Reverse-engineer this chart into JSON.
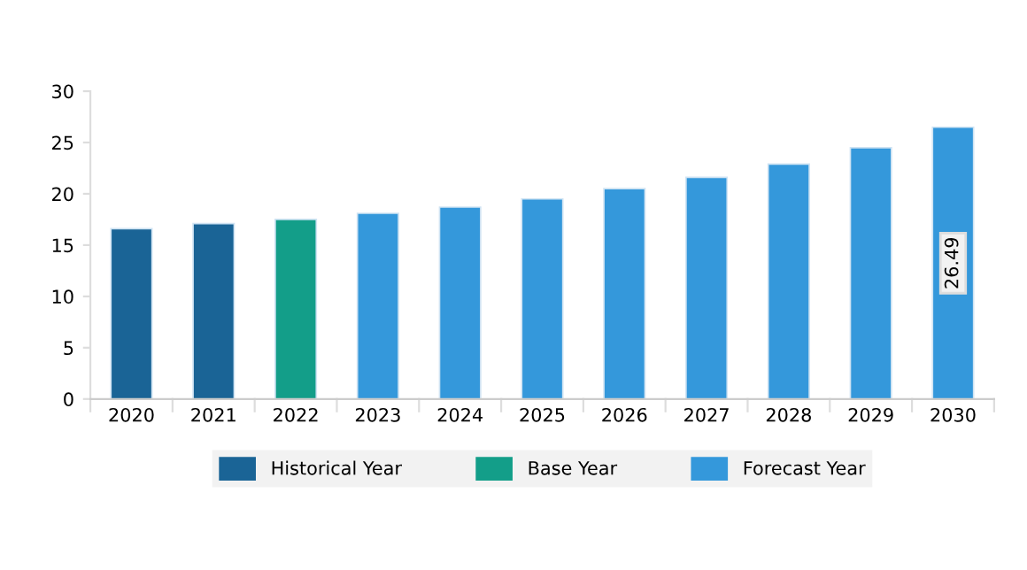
{
  "chart_data": {
    "type": "bar",
    "categories": [
      "2020",
      "2021",
      "2022",
      "2023",
      "2024",
      "2025",
      "2026",
      "2027",
      "2028",
      "2029",
      "2030"
    ],
    "series": [
      {
        "name": "Historical Year",
        "color": "#1a6496",
        "values": [
          16.6,
          17.1,
          null,
          null,
          null,
          null,
          null,
          null,
          null,
          null,
          null
        ]
      },
      {
        "name": "Base Year",
        "color": "#139e89",
        "values": [
          null,
          null,
          17.5,
          null,
          null,
          null,
          null,
          null,
          null,
          null,
          null
        ]
      },
      {
        "name": "Forecast Year",
        "color": "#3498db",
        "values": [
          null,
          null,
          null,
          18.1,
          18.7,
          19.5,
          20.5,
          21.6,
          22.9,
          24.5,
          26.49
        ],
        "value_labels": [
          null,
          null,
          null,
          null,
          null,
          null,
          null,
          null,
          null,
          null,
          "26.49"
        ]
      }
    ],
    "ylim": [
      0,
      30
    ],
    "yticks": [
      0,
      5,
      10,
      15,
      20,
      25,
      30
    ],
    "grid": false,
    "legend": "bottom"
  }
}
